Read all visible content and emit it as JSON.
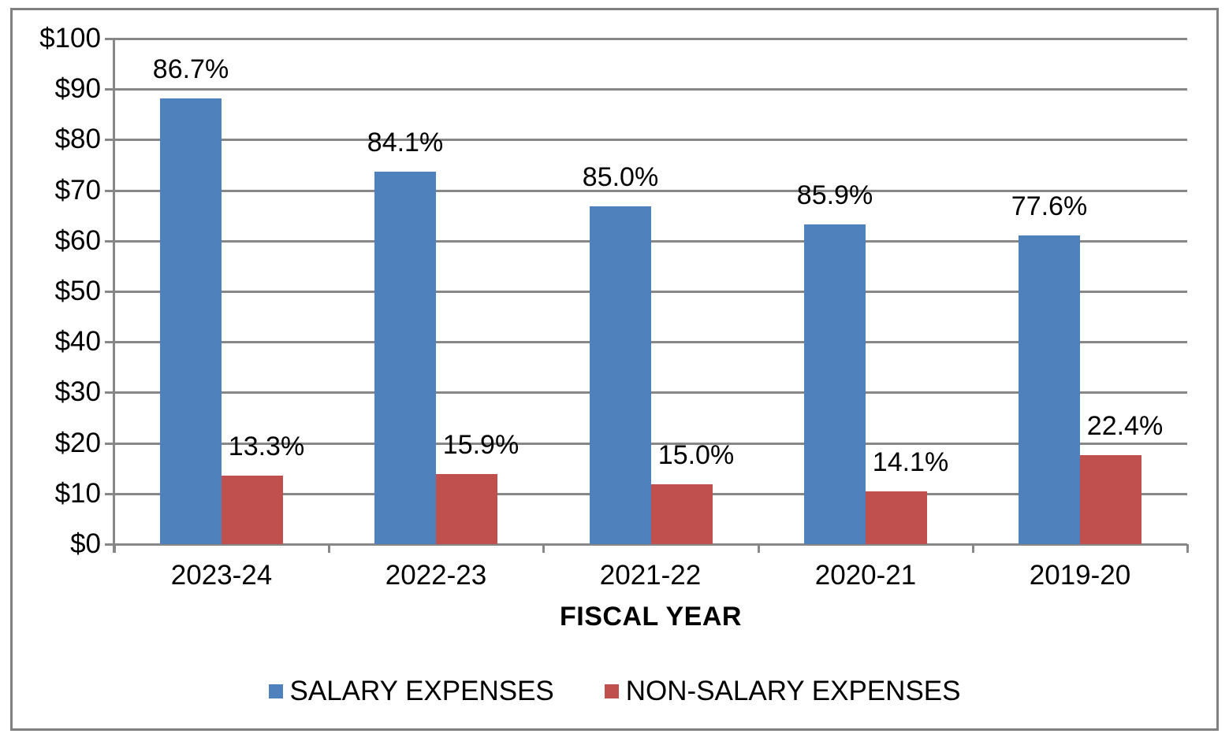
{
  "chart_data": {
    "type": "bar",
    "title": "",
    "categories": [
      "2023-24",
      "2022-23",
      "2021-22",
      "2020-21",
      "2019-20"
    ],
    "series": [
      {
        "name": "SALARY EXPENSES",
        "color": "#4F81BD",
        "values": [
          88.1,
          73.7,
          66.9,
          63.3,
          61.0
        ],
        "data_labels": [
          "86.7%",
          "84.1%",
          "85.0%",
          "85.9%",
          "77.6%"
        ]
      },
      {
        "name": "NON-SALARY EXPENSES",
        "color": "#C0504D",
        "values": [
          13.5,
          13.9,
          11.8,
          10.4,
          17.6
        ],
        "data_labels": [
          "13.3%",
          "15.9%",
          "15.0%",
          "14.1%",
          "22.4%"
        ]
      }
    ],
    "xlabel": "FISCAL YEAR",
    "ylabel": "",
    "y_axis": {
      "min": 0,
      "max": 100,
      "step": 10,
      "tick_labels": [
        "$0",
        "$10",
        "$20",
        "$30",
        "$40",
        "$50",
        "$60",
        "$70",
        "$80",
        "$90",
        "$100"
      ]
    },
    "ylim": [
      0,
      100
    ],
    "grid": true,
    "legend_position": "bottom",
    "colors": {
      "gridline": "#878787",
      "axis": "#878787",
      "frame_border": "#808080",
      "background": "#FFFFFF",
      "text": "#000000"
    }
  }
}
